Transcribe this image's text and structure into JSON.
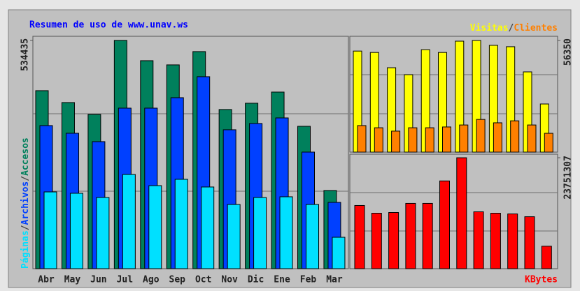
{
  "chart_data": [
    {
      "type": "bar",
      "title": "Resumen de uso de www.unav.ws",
      "separator": "/",
      "categories": [
        "Abr",
        "May",
        "Jun",
        "Jul",
        "Ago",
        "Sep",
        "Oct",
        "Nov",
        "Dic",
        "Ene",
        "Feb",
        "Mar"
      ],
      "series": [
        {
          "name": "Accesos",
          "color": "#00805c",
          "values": [
            416700,
            388900,
            361100,
            534435,
            486900,
            477100,
            508200,
            372600,
            387300,
            413400,
            333300,
            183000
          ]
        },
        {
          "name": "Archivos",
          "color": "#0040ff",
          "values": [
            335000,
            317000,
            297400,
            375800,
            375800,
            400300,
            449400,
            325200,
            339900,
            352900,
            272900,
            155200
          ]
        },
        {
          "name": "Páginas",
          "color": "#00e0ff",
          "values": [
            179700,
            176500,
            166700,
            220600,
            194400,
            209200,
            191200,
            150300,
            166700,
            168300,
            150300,
            73500
          ]
        }
      ],
      "ylim": [
        0,
        544000
      ],
      "yticks": [
        534435
      ]
    },
    {
      "type": "bar",
      "separator": "/",
      "series": [
        {
          "name": "Visitas",
          "color": "#ffff00",
          "values": [
            51000,
            50300,
            42600,
            39100,
            51700,
            50300,
            56000,
            56350,
            53900,
            53200,
            40500,
            24300
          ]
        },
        {
          "name": "Clientes",
          "color": "#ff8000",
          "values": [
            13400,
            12300,
            10600,
            12300,
            12300,
            12700,
            13700,
            16500,
            14800,
            15800,
            13700,
            9500
          ]
        }
      ],
      "ylim": [
        0,
        58460
      ],
      "yticks": [
        56350
      ]
    },
    {
      "type": "bar",
      "series": [
        {
          "name": "KBytes",
          "color": "#ff0000",
          "values": [
            13527000,
            11874000,
            12024000,
            13978000,
            13978000,
            18788000,
            23751307,
            12174000,
            11874000,
            11723000,
            11122000,
            4810000
          ]
        }
      ],
      "ylim": [
        0,
        24503000
      ],
      "yticks": [
        23751307
      ]
    }
  ]
}
